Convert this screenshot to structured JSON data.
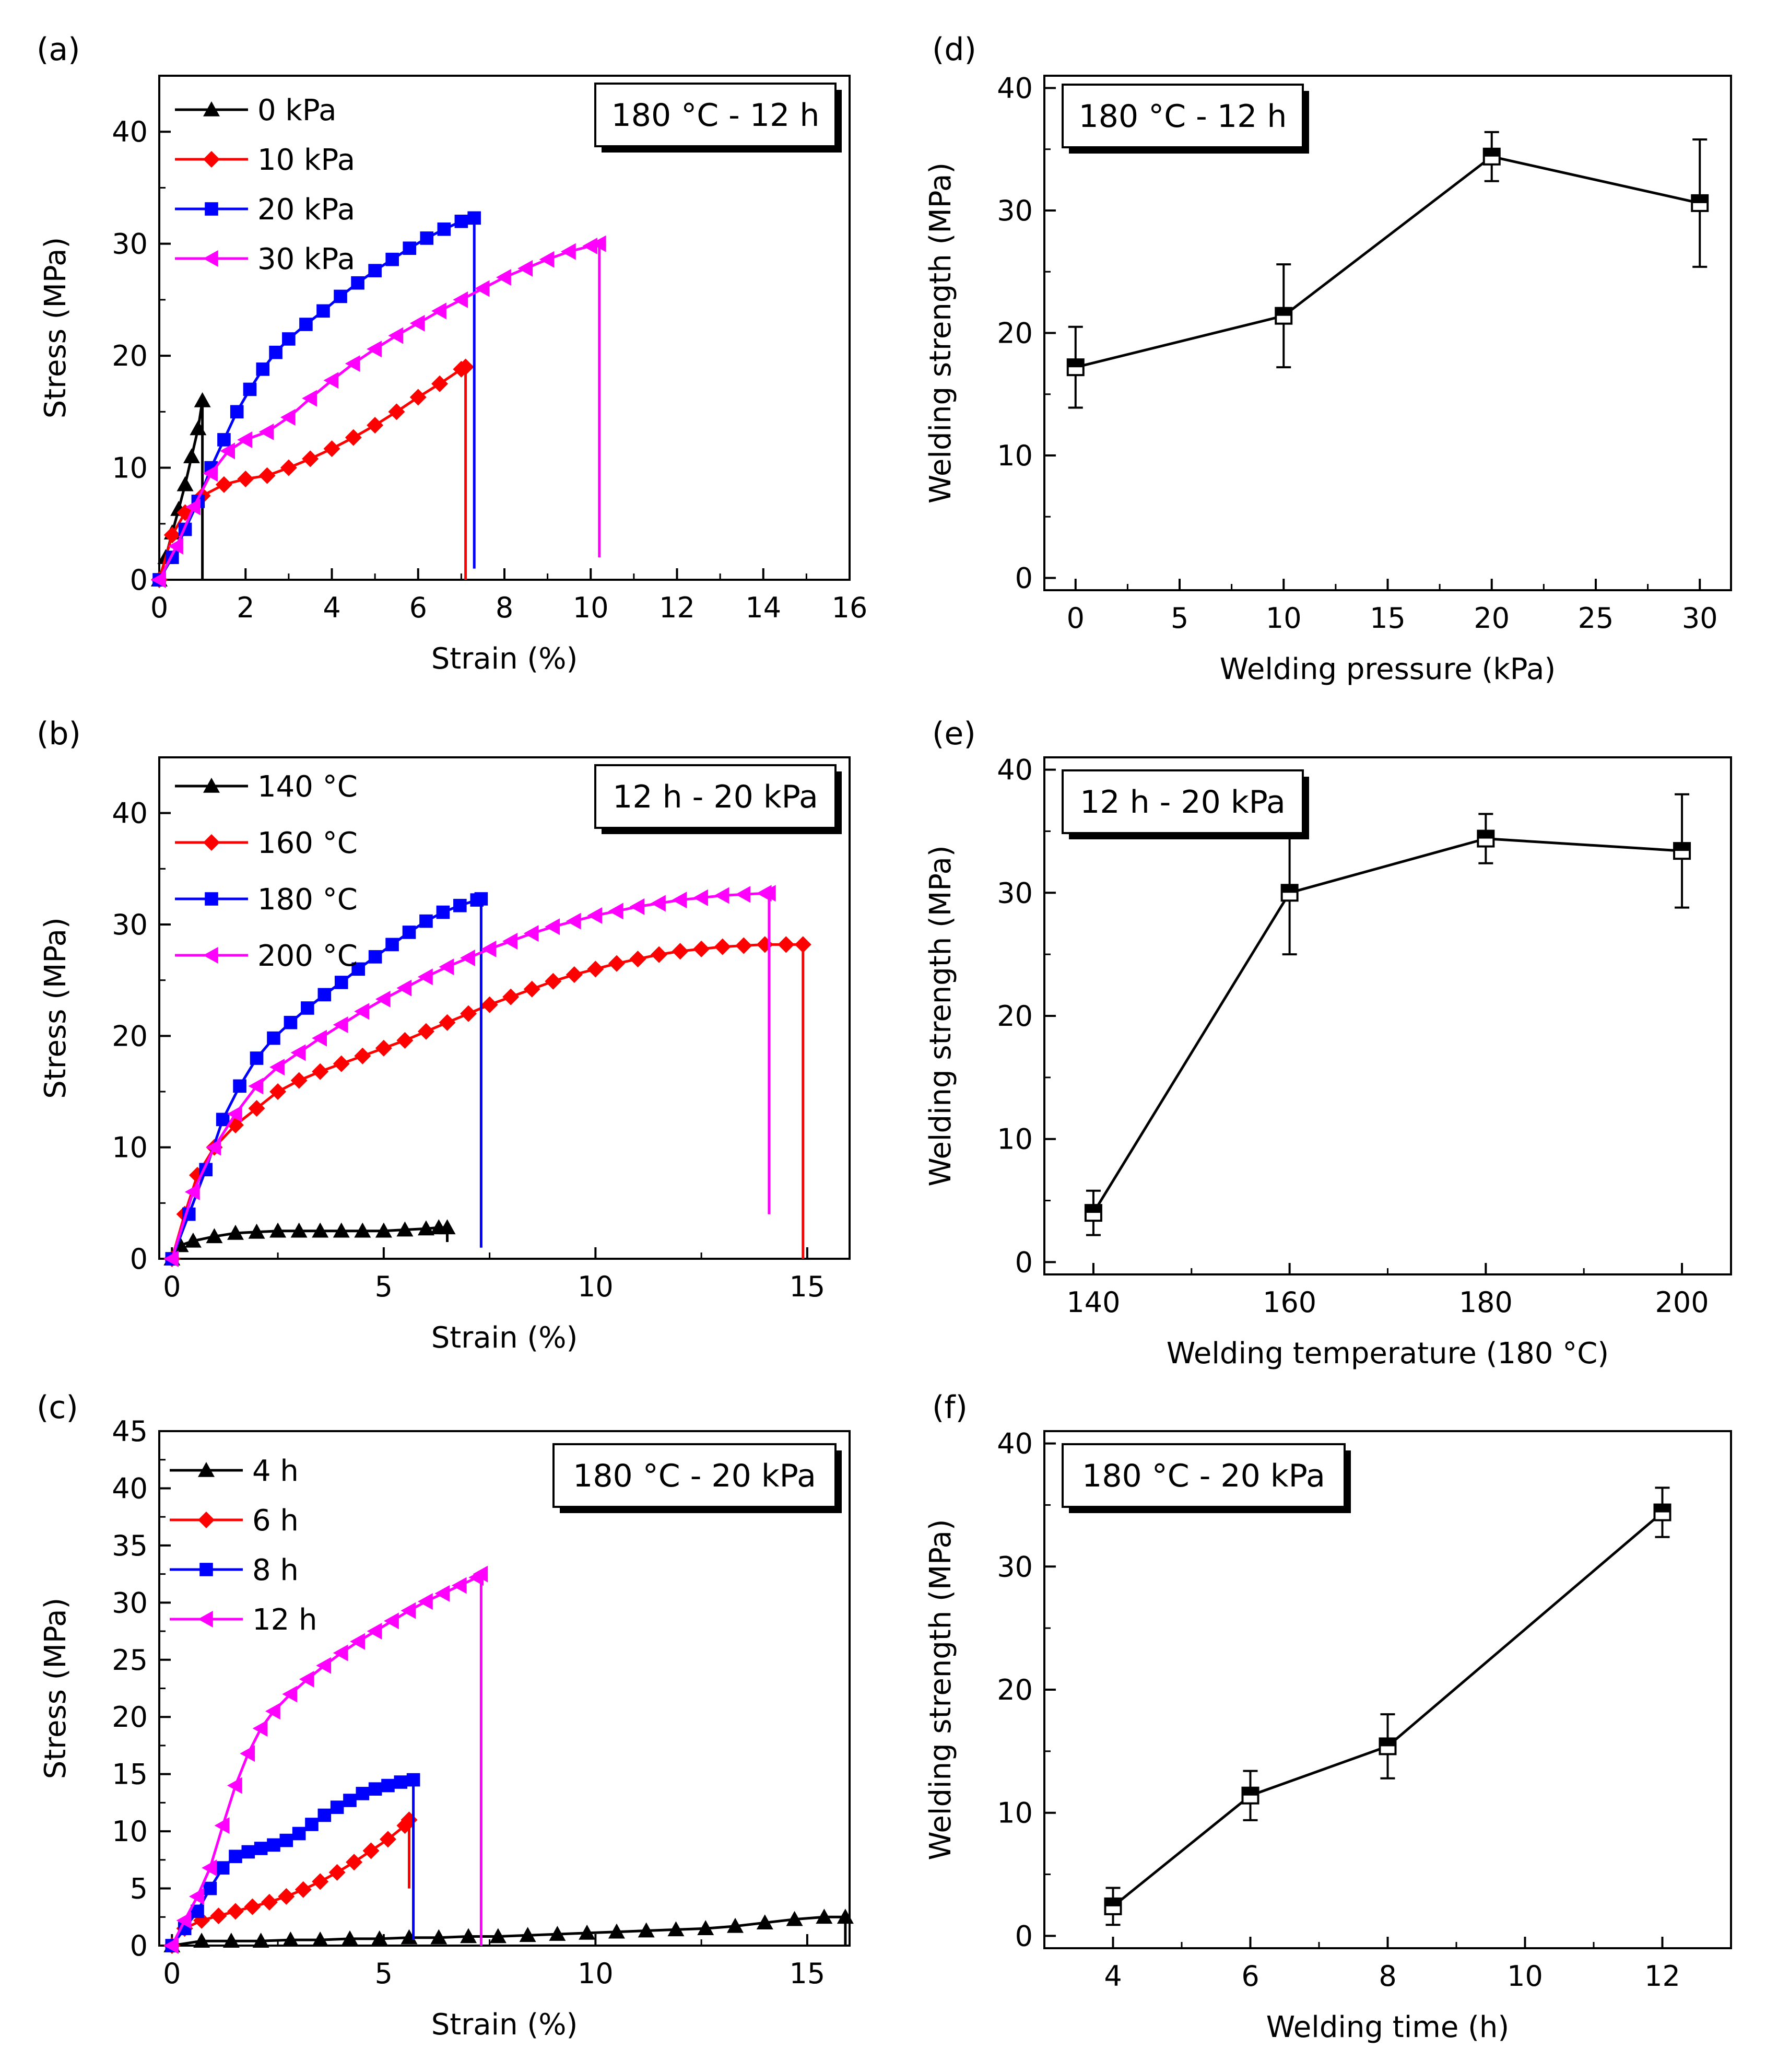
{
  "chart_data": [
    {
      "panel": "(a)",
      "type": "line",
      "xlabel": "Strain (%)",
      "ylabel": "Stress (MPa)",
      "xlim": [
        0,
        16
      ],
      "ylim": [
        0,
        45
      ],
      "xticks": [
        0,
        2,
        4,
        6,
        8,
        10,
        12,
        14,
        16
      ],
      "yticks": [
        0,
        10,
        20,
        30,
        40
      ],
      "condition": "180 °C - 12 h",
      "legend": "top-left",
      "series": [
        {
          "name": "0 kPa",
          "color": "#000000",
          "marker": "triangle",
          "x": [
            0,
            0.15,
            0.3,
            0.45,
            0.6,
            0.75,
            0.9,
            1.0
          ],
          "y": [
            0,
            2,
            4.2,
            6.3,
            8.5,
            11,
            13.5,
            16
          ],
          "drop_to": 0
        },
        {
          "name": "10 kPa",
          "color": "#ff0000",
          "marker": "diamond",
          "x": [
            0,
            0.3,
            0.6,
            1.0,
            1.5,
            2.0,
            2.5,
            3.0,
            3.5,
            4.0,
            4.5,
            5.0,
            5.5,
            6.0,
            6.5,
            7.0,
            7.1
          ],
          "y": [
            0,
            4,
            6,
            7.5,
            8.5,
            9,
            9.3,
            10,
            10.8,
            11.7,
            12.7,
            13.8,
            15,
            16.3,
            17.5,
            18.8,
            19
          ],
          "drop_to": 0
        },
        {
          "name": "20 kPa",
          "color": "#0000ff",
          "marker": "square",
          "x": [
            0,
            0.3,
            0.6,
            0.9,
            1.2,
            1.5,
            1.8,
            2.1,
            2.4,
            2.7,
            3.0,
            3.4,
            3.8,
            4.2,
            4.6,
            5.0,
            5.4,
            5.8,
            6.2,
            6.6,
            7.0,
            7.3
          ],
          "y": [
            0,
            2,
            4.5,
            7,
            10,
            12.5,
            15,
            17,
            18.8,
            20.3,
            21.5,
            22.8,
            24,
            25.3,
            26.5,
            27.6,
            28.6,
            29.6,
            30.5,
            31.3,
            32,
            32.3
          ],
          "drop_to": 1
        },
        {
          "name": "30 kPa",
          "color": "#ff00ff",
          "marker": "left-triangle",
          "x": [
            0,
            0.4,
            0.8,
            1.2,
            1.6,
            2.0,
            2.5,
            3.0,
            3.5,
            4.0,
            4.5,
            5.0,
            5.5,
            6.0,
            6.5,
            7.0,
            7.5,
            8.0,
            8.5,
            9.0,
            9.5,
            10.0,
            10.2
          ],
          "y": [
            0,
            3,
            6.5,
            9.5,
            11.5,
            12.5,
            13.2,
            14.5,
            16.2,
            17.8,
            19.3,
            20.6,
            21.8,
            22.9,
            24,
            25,
            26,
            27,
            27.8,
            28.6,
            29.3,
            29.8,
            30
          ],
          "drop_to": 2
        }
      ]
    },
    {
      "panel": "(b)",
      "type": "line",
      "xlabel": "Strain (%)",
      "ylabel": "Stress (MPa)",
      "xlim": [
        -0.3,
        16
      ],
      "ylim": [
        0,
        45
      ],
      "xticks": [
        0,
        5,
        10,
        15
      ],
      "yticks": [
        0,
        10,
        20,
        30,
        40
      ],
      "condition": "12 h - 20 kPa",
      "legend": "top-left",
      "series": [
        {
          "name": "140 °C",
          "color": "#000000",
          "marker": "triangle",
          "x": [
            0,
            0.2,
            0.5,
            1.0,
            1.5,
            2.0,
            2.5,
            3.0,
            3.5,
            4.0,
            4.5,
            5.0,
            5.5,
            6.0,
            6.3,
            6.5
          ],
          "y": [
            0,
            1.2,
            1.6,
            2.0,
            2.3,
            2.4,
            2.5,
            2.5,
            2.5,
            2.5,
            2.5,
            2.5,
            2.6,
            2.7,
            2.8,
            2.8
          ],
          "drop_to": 1.5
        },
        {
          "name": "160 °C",
          "color": "#ff0000",
          "marker": "diamond",
          "x": [
            0,
            0.3,
            0.6,
            1.0,
            1.5,
            2.0,
            2.5,
            3.0,
            3.5,
            4.0,
            4.5,
            5.0,
            5.5,
            6.0,
            6.5,
            7.0,
            7.5,
            8.0,
            8.5,
            9.0,
            9.5,
            10.0,
            10.5,
            11.0,
            11.5,
            12.0,
            12.5,
            13.0,
            13.5,
            14.0,
            14.5,
            14.9
          ],
          "y": [
            0,
            4,
            7.5,
            10,
            12,
            13.5,
            15,
            16,
            16.8,
            17.5,
            18.2,
            18.9,
            19.6,
            20.4,
            21.2,
            22,
            22.8,
            23.5,
            24.2,
            24.9,
            25.5,
            26,
            26.5,
            26.9,
            27.3,
            27.6,
            27.8,
            28,
            28.1,
            28.2,
            28.2,
            28.2
          ],
          "drop_to": 0
        },
        {
          "name": "180 °C",
          "color": "#0000ff",
          "marker": "square",
          "x": [
            0,
            0.4,
            0.8,
            1.2,
            1.6,
            2.0,
            2.4,
            2.8,
            3.2,
            3.6,
            4.0,
            4.4,
            4.8,
            5.2,
            5.6,
            6.0,
            6.4,
            6.8,
            7.2,
            7.3
          ],
          "y": [
            0,
            4,
            8,
            12.5,
            15.5,
            18,
            19.8,
            21.2,
            22.5,
            23.7,
            24.8,
            26,
            27.1,
            28.2,
            29.3,
            30.3,
            31.1,
            31.7,
            32.2,
            32.3
          ],
          "drop_to": 1
        },
        {
          "name": "200 °C",
          "color": "#ff00ff",
          "marker": "left-triangle",
          "x": [
            0,
            0.5,
            1.0,
            1.5,
            2.0,
            2.5,
            3.0,
            3.5,
            4.0,
            4.5,
            5.0,
            5.5,
            6.0,
            6.5,
            7.0,
            7.5,
            8.0,
            8.5,
            9.0,
            9.5,
            10.0,
            10.5,
            11.0,
            11.5,
            12.0,
            12.5,
            13.0,
            13.5,
            14.0,
            14.1
          ],
          "y": [
            0,
            6,
            10,
            13,
            15.5,
            17.2,
            18.5,
            19.8,
            21,
            22.2,
            23.3,
            24.3,
            25.3,
            26.2,
            27,
            27.8,
            28.5,
            29.2,
            29.8,
            30.3,
            30.8,
            31.2,
            31.6,
            31.9,
            32.2,
            32.4,
            32.6,
            32.7,
            32.8,
            32.8
          ],
          "drop_to": 4
        }
      ]
    },
    {
      "panel": "(c)",
      "type": "line",
      "xlabel": "Strain (%)",
      "ylabel": "Stress (MPa)",
      "xlim": [
        -0.3,
        16
      ],
      "ylim": [
        0,
        45
      ],
      "xticks": [
        0,
        5,
        10,
        15
      ],
      "yticks": [
        0,
        5,
        10,
        15,
        20,
        25,
        30,
        35,
        40,
        45
      ],
      "condition": "180 °C - 20 kPa",
      "legend": "top-left",
      "series": [
        {
          "name": "4 h",
          "color": "#000000",
          "marker": "triangle",
          "x": [
            0,
            0.7,
            1.4,
            2.1,
            2.8,
            3.5,
            4.2,
            4.9,
            5.6,
            6.3,
            7.0,
            7.7,
            8.4,
            9.1,
            9.8,
            10.5,
            11.2,
            11.9,
            12.6,
            13.3,
            14.0,
            14.7,
            15.4,
            15.9
          ],
          "y": [
            0,
            0.4,
            0.4,
            0.4,
            0.5,
            0.5,
            0.6,
            0.6,
            0.7,
            0.7,
            0.8,
            0.8,
            0.9,
            1.0,
            1.1,
            1.2,
            1.3,
            1.4,
            1.5,
            1.7,
            2.0,
            2.3,
            2.5,
            2.5
          ],
          "drop_to": 0
        },
        {
          "name": "6 h",
          "color": "#ff0000",
          "marker": "diamond",
          "x": [
            0,
            0.3,
            0.7,
            1.1,
            1.5,
            1.9,
            2.3,
            2.7,
            3.1,
            3.5,
            3.9,
            4.3,
            4.7,
            5.1,
            5.5,
            5.6
          ],
          "y": [
            0,
            1.5,
            2.2,
            2.6,
            3.0,
            3.4,
            3.8,
            4.3,
            4.9,
            5.6,
            6.4,
            7.3,
            8.3,
            9.3,
            10.5,
            11
          ],
          "drop_to": 5
        },
        {
          "name": "8 h",
          "color": "#0000ff",
          "marker": "square",
          "x": [
            0,
            0.3,
            0.6,
            0.9,
            1.2,
            1.5,
            1.8,
            2.1,
            2.4,
            2.7,
            3.0,
            3.3,
            3.6,
            3.9,
            4.2,
            4.5,
            4.8,
            5.1,
            5.4,
            5.7
          ],
          "y": [
            0,
            1.5,
            3,
            5,
            6.8,
            7.8,
            8.2,
            8.5,
            8.8,
            9.2,
            9.8,
            10.6,
            11.4,
            12.1,
            12.7,
            13.3,
            13.7,
            14.0,
            14.3,
            14.5
          ],
          "drop_to": 0.5
        },
        {
          "name": "12 h",
          "color": "#ff00ff",
          "marker": "left-triangle",
          "x": [
            0,
            0.3,
            0.6,
            0.9,
            1.2,
            1.5,
            1.8,
            2.1,
            2.4,
            2.8,
            3.2,
            3.6,
            4.0,
            4.4,
            4.8,
            5.2,
            5.6,
            6.0,
            6.4,
            6.8,
            7.2,
            7.3
          ],
          "y": [
            0,
            2.2,
            4.3,
            6.8,
            10.5,
            14,
            16.8,
            19,
            20.5,
            22,
            23.3,
            24.5,
            25.6,
            26.6,
            27.5,
            28.4,
            29.3,
            30.1,
            30.8,
            31.5,
            32.2,
            32.5
          ],
          "drop_to": 0
        }
      ]
    },
    {
      "panel": "(d)",
      "type": "line",
      "xlabel": "Welding pressure (kPa)",
      "ylabel": "Welding strength (MPa)",
      "xlim": [
        -1.5,
        31.5
      ],
      "ylim": [
        -1,
        41
      ],
      "xticks": [
        0,
        5,
        10,
        15,
        20,
        25,
        30
      ],
      "yticks": [
        0,
        10,
        20,
        30,
        40
      ],
      "condition": "180 °C - 12 h",
      "series": [
        {
          "name": "Welding strength",
          "color": "#000000",
          "marker": "half-square",
          "x": [
            0,
            10,
            20,
            30
          ],
          "y": [
            17.2,
            21.4,
            34.4,
            30.6
          ],
          "err": [
            3.3,
            4.2,
            2.0,
            5.2
          ]
        }
      ]
    },
    {
      "panel": "(e)",
      "type": "line",
      "xlabel": "Welding temperature (180 °C)",
      "ylabel": "Welding strength (MPa)",
      "xlim": [
        135,
        205
      ],
      "ylim": [
        -1,
        41
      ],
      "xticks": [
        140,
        160,
        180,
        200
      ],
      "yticks": [
        0,
        10,
        20,
        30,
        40
      ],
      "condition": "12 h - 20 kPa",
      "series": [
        {
          "name": "Welding strength",
          "color": "#000000",
          "marker": "half-square",
          "x": [
            140,
            160,
            180,
            200
          ],
          "y": [
            4.0,
            30.0,
            34.4,
            33.4
          ],
          "err": [
            1.8,
            5.0,
            2.0,
            4.6
          ]
        }
      ]
    },
    {
      "panel": "(f)",
      "type": "line",
      "xlabel": "Welding time (h)",
      "ylabel": "Welding strength (MPa)",
      "xlim": [
        3,
        13
      ],
      "ylim": [
        -1,
        41
      ],
      "xticks": [
        4,
        6,
        8,
        10,
        12
      ],
      "yticks": [
        0,
        10,
        20,
        30,
        40
      ],
      "condition": "180 °C - 20 kPa",
      "series": [
        {
          "name": "Welding strength",
          "color": "#000000",
          "marker": "half-square",
          "x": [
            4,
            6,
            8,
            12
          ],
          "y": [
            2.4,
            11.4,
            15.4,
            34.4
          ],
          "err": [
            1.5,
            2.0,
            2.6,
            2.0
          ]
        }
      ]
    }
  ]
}
